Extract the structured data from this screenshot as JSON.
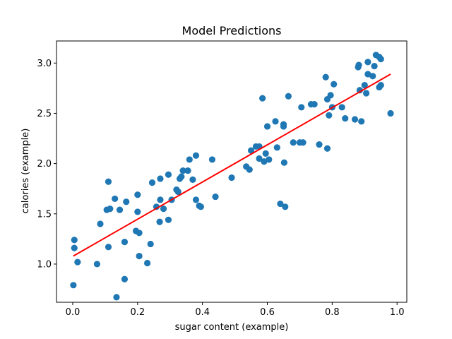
{
  "chart_data": {
    "type": "scatter",
    "title": "Model Predictions",
    "xlabel": "sugar content (example)",
    "ylabel": "calories (example)",
    "xlim": [
      -0.05,
      1.03
    ],
    "ylim": [
      0.62,
      3.22
    ],
    "xticks": [
      0.0,
      0.2,
      0.4,
      0.6,
      0.8,
      1.0
    ],
    "xtick_labels": [
      "0.0",
      "0.2",
      "0.4",
      "0.6",
      "0.8",
      "1.0"
    ],
    "yticks": [
      1.0,
      1.5,
      2.0,
      2.5,
      3.0
    ],
    "ytick_labels": [
      "1.0",
      "1.5",
      "2.0",
      "2.5",
      "3.0"
    ],
    "grid": false,
    "colors": {
      "points": "#1f77b4",
      "fit_line": "#ff0000"
    },
    "series": [
      {
        "kind": "scatter",
        "points": [
          [
            0.005,
            1.24
          ],
          [
            0.005,
            1.16
          ],
          [
            0.002,
            0.79
          ],
          [
            0.015,
            1.02
          ],
          [
            0.075,
            1.0
          ],
          [
            0.085,
            1.4
          ],
          [
            0.105,
            1.54
          ],
          [
            0.11,
            1.82
          ],
          [
            0.115,
            1.55
          ],
          [
            0.11,
            1.17
          ],
          [
            0.13,
            1.65
          ],
          [
            0.135,
            0.67
          ],
          [
            0.145,
            1.54
          ],
          [
            0.16,
            1.22
          ],
          [
            0.16,
            0.85
          ],
          [
            0.165,
            1.62
          ],
          [
            0.195,
            1.33
          ],
          [
            0.2,
            1.52
          ],
          [
            0.2,
            1.69
          ],
          [
            0.205,
            1.31
          ],
          [
            0.205,
            1.08
          ],
          [
            0.23,
            1.01
          ],
          [
            0.24,
            1.2
          ],
          [
            0.245,
            1.81
          ],
          [
            0.258,
            1.57
          ],
          [
            0.268,
            1.42
          ],
          [
            0.27,
            1.64
          ],
          [
            0.27,
            1.85
          ],
          [
            0.28,
            1.55
          ],
          [
            0.295,
            1.89
          ],
          [
            0.295,
            1.44
          ],
          [
            0.305,
            1.64
          ],
          [
            0.32,
            1.74
          ],
          [
            0.325,
            1.72
          ],
          [
            0.33,
            1.85
          ],
          [
            0.335,
            1.87
          ],
          [
            0.34,
            1.93
          ],
          [
            0.355,
            1.93
          ],
          [
            0.36,
            2.04
          ],
          [
            0.37,
            1.84
          ],
          [
            0.38,
            2.08
          ],
          [
            0.38,
            1.64
          ],
          [
            0.39,
            1.58
          ],
          [
            0.395,
            1.57
          ],
          [
            0.43,
            2.04
          ],
          [
            0.44,
            1.67
          ],
          [
            0.49,
            1.86
          ],
          [
            0.535,
            1.97
          ],
          [
            0.545,
            1.94
          ],
          [
            0.55,
            2.13
          ],
          [
            0.565,
            2.17
          ],
          [
            0.575,
            2.17
          ],
          [
            0.575,
            2.05
          ],
          [
            0.585,
            2.65
          ],
          [
            0.59,
            2.02
          ],
          [
            0.595,
            2.1
          ],
          [
            0.6,
            2.37
          ],
          [
            0.605,
            2.04
          ],
          [
            0.625,
            2.42
          ],
          [
            0.63,
            2.16
          ],
          [
            0.64,
            1.6
          ],
          [
            0.65,
            2.37
          ],
          [
            0.65,
            2.39
          ],
          [
            0.652,
            2.01
          ],
          [
            0.655,
            1.57
          ],
          [
            0.665,
            2.67
          ],
          [
            0.68,
            2.21
          ],
          [
            0.7,
            2.21
          ],
          [
            0.705,
            2.56
          ],
          [
            0.71,
            2.21
          ],
          [
            0.735,
            2.59
          ],
          [
            0.745,
            2.59
          ],
          [
            0.76,
            2.19
          ],
          [
            0.78,
            2.86
          ],
          [
            0.785,
            2.15
          ],
          [
            0.785,
            2.64
          ],
          [
            0.79,
            2.48
          ],
          [
            0.795,
            2.68
          ],
          [
            0.8,
            2.56
          ],
          [
            0.805,
            2.79
          ],
          [
            0.83,
            2.56
          ],
          [
            0.84,
            2.45
          ],
          [
            0.87,
            2.44
          ],
          [
            0.88,
            2.96
          ],
          [
            0.882,
            2.98
          ],
          [
            0.885,
            2.73
          ],
          [
            0.89,
            2.42
          ],
          [
            0.9,
            2.78
          ],
          [
            0.905,
            2.7
          ],
          [
            0.91,
            3.01
          ],
          [
            0.91,
            2.89
          ],
          [
            0.925,
            2.87
          ],
          [
            0.93,
            2.97
          ],
          [
            0.935,
            3.08
          ],
          [
            0.945,
            3.06
          ],
          [
            0.945,
            2.76
          ],
          [
            0.95,
            3.04
          ],
          [
            0.95,
            2.78
          ],
          [
            0.98,
            2.5
          ]
        ]
      },
      {
        "kind": "line",
        "points": [
          [
            0.002,
            1.08
          ],
          [
            0.98,
            2.89
          ]
        ]
      }
    ]
  }
}
